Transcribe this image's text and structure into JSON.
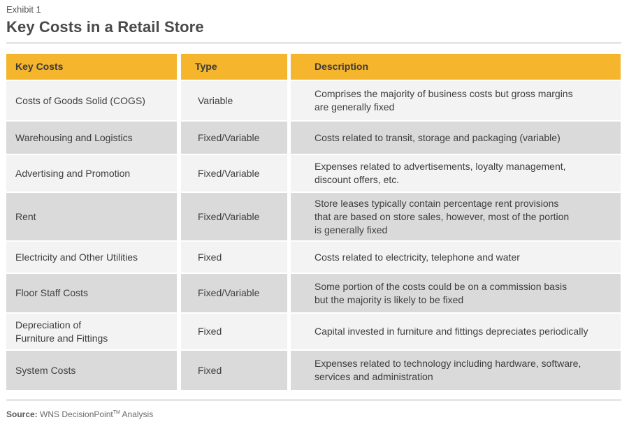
{
  "exhibit_label": "Exhibit 1",
  "title": "Key Costs in a Retail Store",
  "table": {
    "headers": [
      "Key Costs",
      "Type",
      "Description"
    ],
    "rows": [
      {
        "cost": [
          "Costs of Goods Solid (COGS)"
        ],
        "type": "Variable",
        "description": [
          "Comprises the majority of business costs but gross margins",
          "are generally fixed"
        ]
      },
      {
        "cost": [
          "Warehousing and Logistics"
        ],
        "type": "Fixed/Variable",
        "description": [
          "Costs related to transit, storage and packaging (variable)"
        ]
      },
      {
        "cost": [
          "Advertising and Promotion"
        ],
        "type": "Fixed/Variable",
        "description": [
          "Expenses related to advertisements, loyalty management,",
          "discount offers, etc."
        ]
      },
      {
        "cost": [
          "Rent"
        ],
        "type": "Fixed/Variable",
        "description": [
          "Store leases typically contain percentage rent provisions",
          "that are based on store sales, however, most of the portion",
          "is generally fixed"
        ]
      },
      {
        "cost": [
          "Electricity and Other Utilities"
        ],
        "type": "Fixed",
        "description": [
          "Costs related to electricity, telephone and water"
        ]
      },
      {
        "cost": [
          "Floor Staff Costs"
        ],
        "type": "Fixed/Variable",
        "description": [
          "Some portion of the costs could be on a commission basis",
          "but the majority is likely to be fixed"
        ]
      },
      {
        "cost": [
          "Depreciation of",
          "Furniture and Fittings"
        ],
        "type": "Fixed",
        "description": [
          "Capital invested in furniture and fittings depreciates periodically"
        ]
      },
      {
        "cost": [
          "System Costs"
        ],
        "type": "Fixed",
        "description": [
          "Expenses related to technology including hardware, software,",
          "services and administration"
        ]
      }
    ]
  },
  "source": {
    "label": "Source:",
    "text": "WNS DecisionPoint",
    "trademark": "TM",
    "suffix": "Analysis"
  }
}
